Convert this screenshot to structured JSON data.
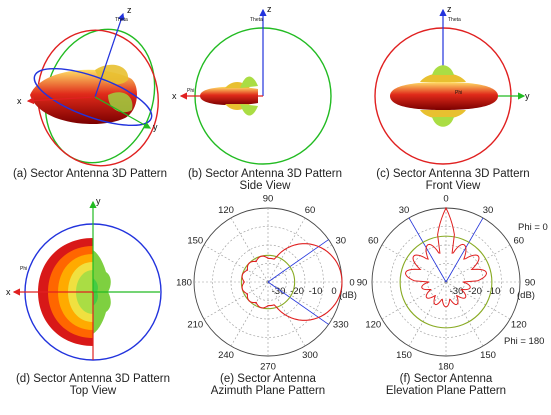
{
  "figure": {
    "panels": [
      {
        "id": "a",
        "caption": [
          "(a) Sector Antenna 3D Pattern"
        ],
        "axes": [
          "z",
          "y",
          "x"
        ],
        "theta": "Theta",
        "phi": ""
      },
      {
        "id": "b",
        "caption": [
          "(b) Sector Antenna 3D Pattern",
          "Side View"
        ],
        "axes": [
          "z",
          "x"
        ],
        "theta": "Theta",
        "phi": "Phi"
      },
      {
        "id": "c",
        "caption": [
          "(c) Sector Antenna 3D Pattern",
          "Front View"
        ],
        "axes": [
          "z",
          "y"
        ],
        "theta": "Theta",
        "phi": "Phi"
      },
      {
        "id": "d",
        "caption": [
          "(d) Sector Antenna 3D Pattern",
          "Top View"
        ],
        "axes": [
          "y",
          "x"
        ],
        "theta": "",
        "phi": "Phi"
      },
      {
        "id": "e",
        "caption": [
          "(e) Sector Antenna",
          "Azimuth Plane Pattern"
        ]
      },
      {
        "id": "f",
        "caption": [
          "(f) Sector Antenna",
          "Elevation Plane Pattern"
        ]
      }
    ],
    "azimuth_plot": {
      "angle_labels": [
        "0",
        "30",
        "60",
        "90",
        "120",
        "150",
        "180",
        "210",
        "240",
        "270",
        "300",
        "330"
      ],
      "radial_labels": [
        "-30",
        "-20",
        "-10",
        "0"
      ],
      "unit": "(dB)"
    },
    "elevation_plot": {
      "angle_labels_top": [
        "90",
        "60",
        "30",
        "0",
        "30",
        "60",
        "90",
        "120",
        "150",
        "180",
        "150",
        "120"
      ],
      "radial_labels": [
        "-30",
        "-20",
        "-10",
        "0"
      ],
      "unit": "(dB)",
      "phi_labels": [
        "Phi = 0",
        "Phi = 180"
      ]
    },
    "colors": {
      "red": "#e02020",
      "green": "#22bb22",
      "blue": "#2233dd",
      "olive": "#88aa22"
    }
  }
}
